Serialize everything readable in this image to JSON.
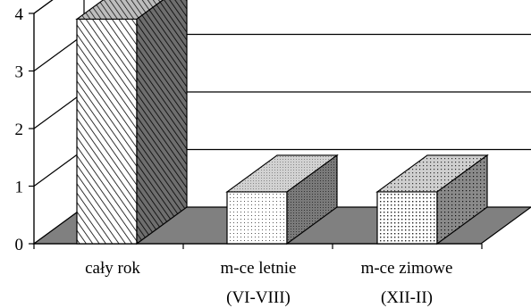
{
  "chart_data": {
    "type": "bar",
    "style": "3d",
    "categories": [
      [
        "cały rok"
      ],
      [
        "m-ce letnie",
        "(VI-VIII)"
      ],
      [
        "m-ce zimowe",
        "(XII-II)"
      ]
    ],
    "values": [
      3.9,
      0.9,
      0.9
    ],
    "ylim": [
      0,
      4
    ],
    "yticks": [
      0,
      1,
      2,
      3,
      4
    ],
    "grid": true,
    "legend": "none",
    "colors": {
      "floor": "#808080",
      "bar_front": "#ffffff",
      "bar_top": "#c8c8c8",
      "bar_side": "#7a7a7a",
      "line": "#000000"
    },
    "bar_patterns": [
      "diagonal-hatch",
      "fine-dots",
      "dots"
    ]
  }
}
